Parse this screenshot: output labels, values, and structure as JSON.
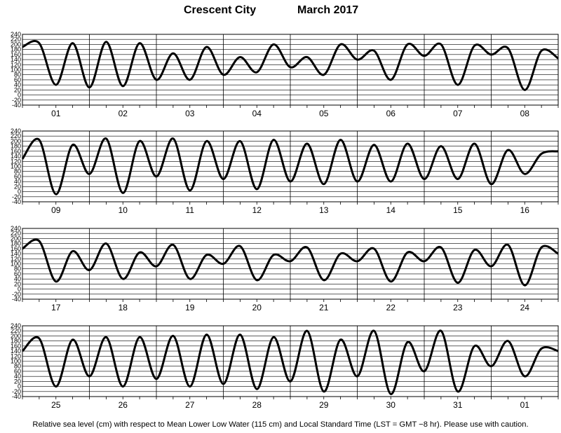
{
  "header": {
    "station": "Crescent City",
    "month_year": "March   2017"
  },
  "footer": {
    "caption": "Relative sea level (cm) with respect to Mean Lower Low Water (115 cm) and Local Standard Time (LST = GMT −8 hr). Please use with caution."
  },
  "chart_data": {
    "type": "line",
    "title": "Crescent City          March   2017",
    "ylabel": "",
    "xlabel": "",
    "ylim": [
      -40,
      240
    ],
    "yticks": [
      -40,
      -20,
      0,
      20,
      40,
      60,
      80,
      100,
      120,
      140,
      160,
      180,
      200,
      220,
      240
    ],
    "grid": true,
    "line_color": "#000000",
    "note": "Each row shows 8 days; y values are tide heights (cm) at 6-hour steps from 00:00 LST of the first day of the row.",
    "rows": [
      {
        "days": [
          "01",
          "02",
          "03",
          "04",
          "05",
          "06",
          "07",
          "08"
        ],
        "values": [
          190,
          205,
          40,
          205,
          30,
          210,
          35,
          205,
          60,
          165,
          60,
          190,
          80,
          150,
          90,
          200,
          110,
          150,
          80,
          200,
          140,
          175,
          60,
          200,
          155,
          200,
          40,
          195,
          160,
          185,
          20,
          175,
          145
        ]
      },
      {
        "days": [
          "09",
          "10",
          "11",
          "12",
          "13",
          "14",
          "15",
          "16"
        ],
        "values": [
          130,
          205,
          -10,
          185,
          70,
          210,
          -5,
          200,
          60,
          210,
          5,
          200,
          50,
          200,
          10,
          205,
          40,
          190,
          30,
          205,
          40,
          185,
          40,
          190,
          50,
          180,
          50,
          190,
          30,
          165,
          70,
          150,
          160
        ]
      },
      {
        "days": [
          "17",
          "18",
          "19",
          "20",
          "21",
          "22",
          "23",
          "24"
        ],
        "values": [
          160,
          190,
          30,
          150,
          75,
          180,
          40,
          145,
          90,
          175,
          40,
          135,
          100,
          170,
          35,
          135,
          110,
          165,
          35,
          140,
          110,
          160,
          30,
          145,
          110,
          165,
          25,
          155,
          90,
          175,
          15,
          165,
          140
        ]
      },
      {
        "days": [
          "25",
          "26",
          "27",
          "28",
          "29",
          "30",
          "31",
          "01"
        ],
        "values": [
          140,
          190,
          0,
          185,
          40,
          195,
          0,
          195,
          30,
          200,
          0,
          205,
          10,
          205,
          -10,
          195,
          20,
          220,
          -20,
          185,
          40,
          220,
          -30,
          175,
          60,
          220,
          -20,
          160,
          80,
          180,
          40,
          150,
          140
        ]
      }
    ]
  }
}
